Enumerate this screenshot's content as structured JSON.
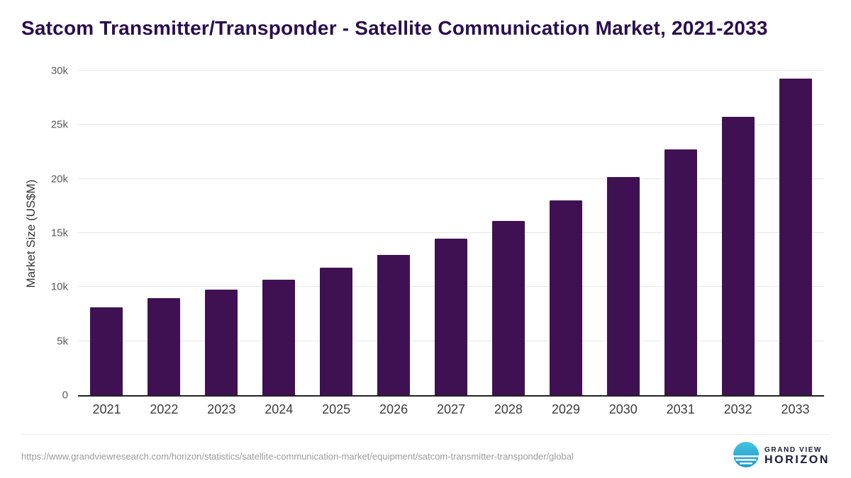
{
  "title": "Satcom Transmitter/Transponder - Satellite Communication Market, 2021-2033",
  "chart_data": {
    "type": "bar",
    "title": "Satcom Transmitter/Transponder - Satellite Communication Market, 2021-2033",
    "categories": [
      "2021",
      "2022",
      "2023",
      "2024",
      "2025",
      "2026",
      "2027",
      "2028",
      "2029",
      "2030",
      "2031",
      "2032",
      "2033"
    ],
    "values": [
      8150,
      8950,
      9750,
      10650,
      11800,
      13000,
      14500,
      16100,
      18000,
      20200,
      22750,
      25750,
      29300
    ],
    "xlabel": "",
    "ylabel": "Market Size (US$M)",
    "ylim": [
      0,
      30000
    ],
    "yticks": [
      0,
      5000,
      10000,
      15000,
      20000,
      25000,
      30000
    ],
    "ytick_labels": [
      "0",
      "5k",
      "10k",
      "15k",
      "20k",
      "25k",
      "30k"
    ],
    "bar_color": "#3f1152",
    "grid": true,
    "legend": false
  },
  "footer": {
    "source_url": "https://www.grandviewresearch.com/horizon/statistics/satellite-communication-market/equipment/satcom-transmitter-transponder/global"
  },
  "logo": {
    "line1": "GRAND VIEW",
    "line2": "HORIZON",
    "icon_color_top": "#45c2e0",
    "icon_color_bottom": "#1a9bc9"
  }
}
